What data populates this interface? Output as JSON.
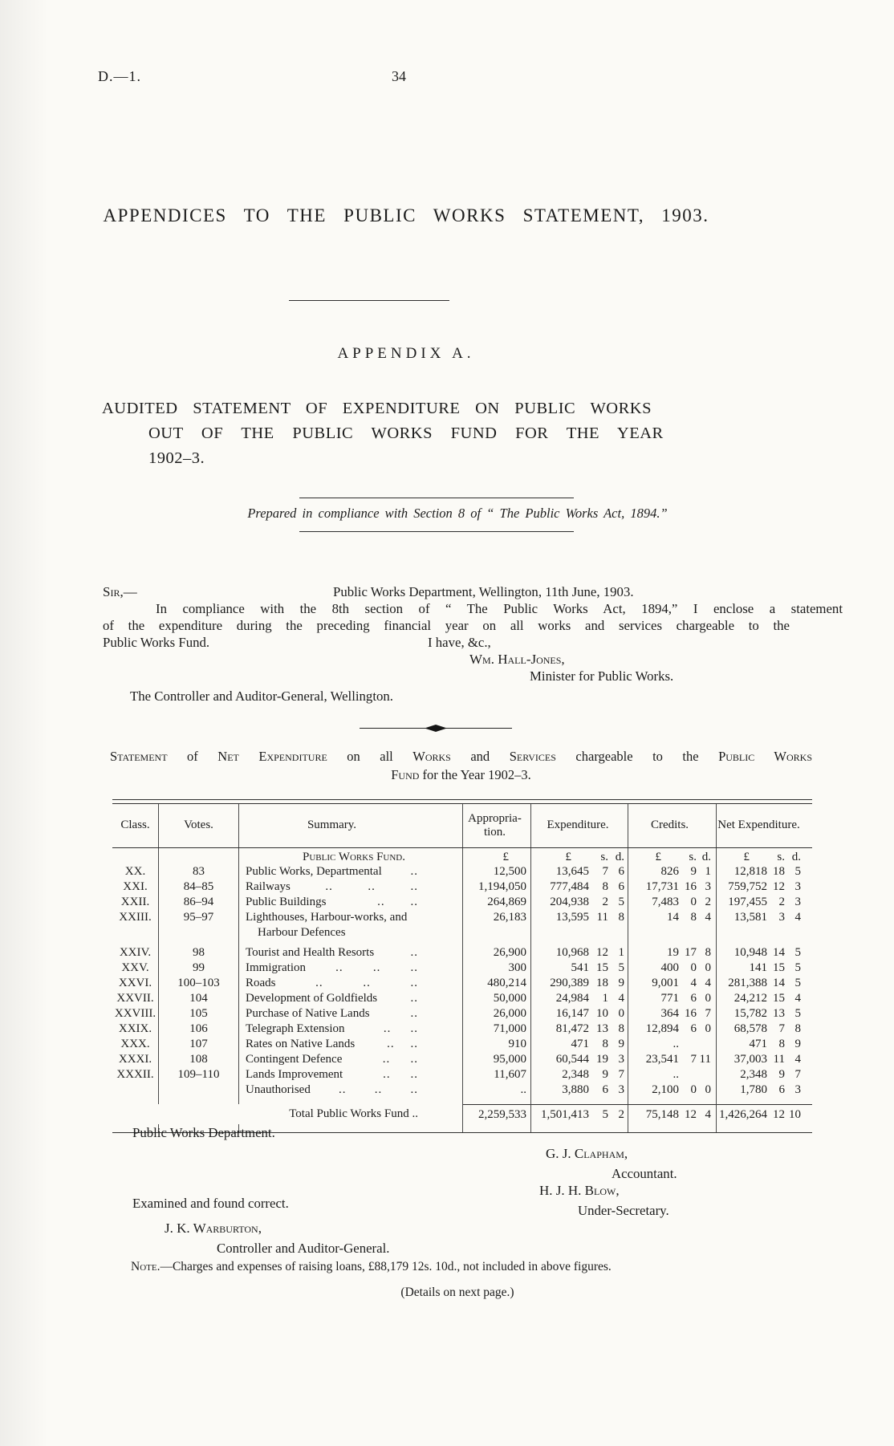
{
  "page": {
    "doc_ref": "D.—1.",
    "page_number": "34"
  },
  "titles": {
    "main": "APPENDICES TO THE PUBLIC WORKS STATEMENT, 1903.",
    "appendix": "APPENDIX A.",
    "audited_line1": "AUDITED STATEMENT OF EXPENDITURE ON PUBLIC WORKS",
    "audited_line2": "OUT OF THE PUBLIC WORKS FUND FOR THE YEAR",
    "audited_line3": "1902–3.",
    "compliance": "Prepared in compliance with Section 8 of “ The Public Works Act, 1894.”"
  },
  "letter": {
    "salutation": "Sir,—",
    "dateline": "Public Works Department, Wellington, 11th June, 1903.",
    "body_line1": "In compliance with the 8th section of “ The Public Works Act, 1894,” I enclose a statement",
    "body_line2": "of the expenditure during the preceding financial year on all works and services chargeable to the",
    "body_line3": "Public Works Fund.",
    "valediction": "I have, &c.,",
    "signer_name": "Wm. Hall-Jones,",
    "signer_title": "Minister for Public Works.",
    "addressee": "The Controller and Auditor-General, Wellington."
  },
  "heading": {
    "seg1": [
      "Statement",
      " of ",
      "Net Expenditure",
      " on all ",
      "Works",
      " and ",
      "Services",
      " chargeable to the ",
      "Public Works"
    ],
    "seg2": [
      "Fund",
      " for the Year 1902–3."
    ]
  },
  "table": {
    "headers": {
      "class": "Class.",
      "votes": "Votes.",
      "summary": "Summary.",
      "appropriation": "Appropria-\ntion.",
      "expenditure": "Expenditure.",
      "credits": "Credits.",
      "net": "Net Expenditure."
    },
    "currency": {
      "pound": "£",
      "s": "s.",
      "d": "d."
    },
    "section_label": "Public Works Fund.",
    "rows": [
      {
        "c": "XX.",
        "v": "83",
        "sum": "Public Works, Departmental",
        "dots": [
          "",
          "",
          ".."
        ],
        "app": "12,500",
        "exp": [
          "13,645",
          "7",
          "6"
        ],
        "cr": [
          "826",
          "9",
          "1"
        ],
        "net": [
          "12,818",
          "18",
          "5"
        ]
      },
      {
        "c": "XXI.",
        "v": "84–85",
        "sum": "Railways",
        "dots": [
          "..",
          "..",
          ".."
        ],
        "app": "1,194,050",
        "exp": [
          "777,484",
          "8",
          "6"
        ],
        "cr": [
          "17,731",
          "16",
          "3"
        ],
        "net": [
          "759,752",
          "12",
          "3"
        ]
      },
      {
        "c": "XXII.",
        "v": "86–94",
        "sum": "Public Buildings",
        "dots": [
          "",
          "..",
          ".."
        ],
        "app": "264,869",
        "exp": [
          "204,938",
          "2",
          "5"
        ],
        "cr": [
          "7,483",
          "0",
          "2"
        ],
        "net": [
          "197,455",
          "2",
          "3"
        ]
      },
      {
        "c": "XXIII.",
        "v": "95–97",
        "sum": "Lighthouses, Harbour-works, and\n    Harbour Defences",
        "dots": [
          "",
          "",
          ""
        ],
        "app": "26,183",
        "exp": [
          "13,595",
          "11",
          "8"
        ],
        "cr": [
          "14",
          "8",
          "4"
        ],
        "net": [
          "13,581",
          "3",
          "4"
        ]
      },
      {
        "c": "XXIV.",
        "v": "98",
        "sum": "Tourist and Health Resorts",
        "dots": [
          "",
          "",
          ".."
        ],
        "app": "26,900",
        "exp": [
          "10,968",
          "12",
          "1"
        ],
        "cr": [
          "19",
          "17",
          "8"
        ],
        "net": [
          "10,948",
          "14",
          "5"
        ],
        "gap": true
      },
      {
        "c": "XXV.",
        "v": "99",
        "sum": "Immigration",
        "dots": [
          "..",
          "..",
          ".."
        ],
        "app": "300",
        "exp": [
          "541",
          "15",
          "5"
        ],
        "cr": [
          "400",
          "0",
          "0"
        ],
        "net": [
          "141",
          "15",
          "5"
        ]
      },
      {
        "c": "XXVI.",
        "v": "100–103",
        "sum": "Roads",
        "dots": [
          "..",
          "..",
          ".."
        ],
        "app": "480,214",
        "exp": [
          "290,389",
          "18",
          "9"
        ],
        "cr": [
          "9,001",
          "4",
          "4"
        ],
        "net": [
          "281,388",
          "14",
          "5"
        ]
      },
      {
        "c": "XXVII.",
        "v": "104",
        "sum": "Development of Goldfields",
        "dots": [
          "",
          "",
          ".."
        ],
        "app": "50,000",
        "exp": [
          "24,984",
          "1",
          "4"
        ],
        "cr": [
          "771",
          "6",
          "0"
        ],
        "net": [
          "24,212",
          "15",
          "4"
        ]
      },
      {
        "c": "XXVIII.",
        "v": "105",
        "sum": "Purchase of Native Lands",
        "dots": [
          "",
          "",
          ".."
        ],
        "app": "26,000",
        "exp": [
          "16,147",
          "10",
          "0"
        ],
        "cr": [
          "364",
          "16",
          "7"
        ],
        "net": [
          "15,782",
          "13",
          "5"
        ]
      },
      {
        "c": "XXIX.",
        "v": "106",
        "sum": "Telegraph Extension",
        "dots": [
          "",
          "..",
          ".."
        ],
        "app": "71,000",
        "exp": [
          "81,472",
          "13",
          "8"
        ],
        "cr": [
          "12,894",
          "6",
          "0"
        ],
        "net": [
          "68,578",
          "7",
          "8"
        ]
      },
      {
        "c": "XXX.",
        "v": "107",
        "sum": "Rates on Native Lands",
        "dots": [
          "",
          "..",
          ".."
        ],
        "app": "910",
        "exp": [
          "471",
          "8",
          "9"
        ],
        "cr": [
          "..",
          "",
          ""
        ],
        "net": [
          "471",
          "8",
          "9"
        ]
      },
      {
        "c": "XXXI.",
        "v": "108",
        "sum": "Contingent Defence",
        "dots": [
          "",
          "..",
          ".."
        ],
        "app": "95,000",
        "exp": [
          "60,544",
          "19",
          "3"
        ],
        "cr": [
          "23,541",
          "7",
          "11"
        ],
        "net": [
          "37,003",
          "11",
          "4"
        ]
      },
      {
        "c": "XXXII.",
        "v": "109–110",
        "sum": "Lands Improvement",
        "dots": [
          "",
          "..",
          ".."
        ],
        "app": "11,607",
        "exp": [
          "2,348",
          "9",
          "7"
        ],
        "cr": [
          "..",
          "",
          ""
        ],
        "net": [
          "2,348",
          "9",
          "7"
        ]
      },
      {
        "c": "",
        "v": "",
        "sum": "Unauthorised",
        "dots": [
          "..",
          "..",
          ".."
        ],
        "app": "..",
        "exp": [
          "3,880",
          "6",
          "3"
        ],
        "cr": [
          "2,100",
          "0",
          "0"
        ],
        "net": [
          "1,780",
          "6",
          "3"
        ]
      }
    ],
    "total": {
      "label": "Total Public Works Fund ..",
      "app": "2,259,533",
      "exp": [
        "1,501,413",
        "5",
        "2"
      ],
      "cr": [
        "75,148",
        "12",
        "4"
      ],
      "net": [
        "1,426,264",
        "12",
        "10"
      ]
    }
  },
  "footer": {
    "department": "Public Works Department.",
    "sig1_name": "G. J. Clapham,",
    "sig1_title": "Accountant.",
    "sig2_name": "H. J. H. Blow,",
    "sig2_title": "Under-Secretary.",
    "examined": "Examined and found correct.",
    "sig3_name": "J. K. Warburton,",
    "sig3_title": "Controller and Auditor-General.",
    "note_parts": [
      "Note.",
      "—Charges and expenses of raising loans, £88,179 12s. 10d., not included in above figures."
    ],
    "details": "(Details on next page.)"
  }
}
